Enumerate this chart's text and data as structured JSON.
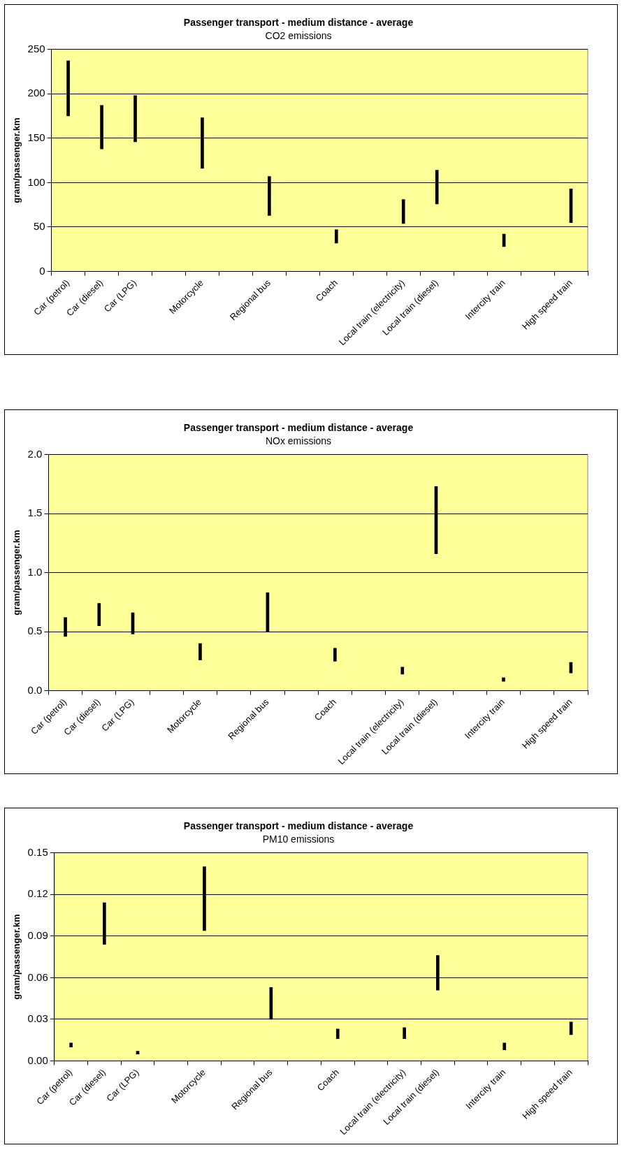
{
  "chart_data": [
    {
      "type": "bar",
      "title": "Passenger transport - medium distance - average",
      "subtitle": "CO2 emissions",
      "ylabel": "gram/passenger.km",
      "categories": [
        "Car (petrol)",
        "Car (diesel)",
        "Car (LPG)",
        null,
        "Motorcycle",
        null,
        "Regional bus",
        null,
        "Coach",
        null,
        "Local train (electricity)",
        "Local train (diesel)",
        null,
        "Intercity train",
        null,
        "High speed train"
      ],
      "base": [
        175,
        138,
        146,
        null,
        116,
        null,
        63,
        null,
        32,
        null,
        54,
        76,
        null,
        28,
        null,
        55
      ],
      "values": [
        62,
        49,
        52,
        null,
        57,
        null,
        44,
        null,
        15,
        null,
        27,
        38,
        null,
        14,
        null,
        38
      ],
      "color": "#000000",
      "ylim": [
        0,
        250
      ],
      "yticks": [
        0,
        50,
        100,
        150,
        200,
        250
      ],
      "grid": "y",
      "legend": false
    },
    {
      "type": "bar",
      "title": "Passenger transport - medium distance - average",
      "subtitle": "NOx emissions",
      "ylabel": "gram/passenger.km",
      "categories": [
        "Car (petrol)",
        "Car (diesel)",
        "Car (LPG)",
        null,
        "Motorcycle",
        null,
        "Regional bus",
        null,
        "Coach",
        null,
        "Local train (electricity)",
        "Local train (diesel)",
        null,
        "Intercity train",
        null,
        "High speed train"
      ],
      "base": [
        0.46,
        0.55,
        0.48,
        null,
        0.26,
        null,
        0.5,
        null,
        0.25,
        null,
        0.14,
        1.16,
        null,
        0.08,
        null,
        0.15
      ],
      "values": [
        0.16,
        0.19,
        0.18,
        null,
        0.14,
        null,
        0.33,
        null,
        0.11,
        null,
        0.06,
        0.57,
        null,
        0.03,
        null,
        0.09
      ],
      "color": "#000000",
      "ylim": [
        0,
        2
      ],
      "yticks": [
        {
          "value": 0,
          "label": "0.0"
        },
        {
          "value": 0.5,
          "label": "0.5"
        },
        {
          "value": 1,
          "label": "1.0"
        },
        {
          "value": 1.5,
          "label": "1.5"
        },
        {
          "value": 2,
          "label": "2.0"
        }
      ],
      "grid": "y",
      "legend": false
    },
    {
      "type": "bar",
      "title": "Passenger transport - medium distance - average",
      "subtitle": "PM10 emissions",
      "ylabel": "gram/passenger.km",
      "categories": [
        "Car (petrol)",
        "Car (diesel)",
        "Car (LPG)",
        null,
        "Motorcycle",
        null,
        "Regional bus",
        null,
        "Coach",
        null,
        "Local train (electricity)",
        "Local train (diesel)",
        null,
        "Intercity train",
        null,
        "High speed train"
      ],
      "base": [
        0.01,
        0.084,
        0.005,
        null,
        0.094,
        null,
        0.03,
        null,
        0.016,
        null,
        0.016,
        0.051,
        null,
        0.008,
        null,
        0.019
      ],
      "values": [
        0.003,
        0.03,
        0.002,
        null,
        0.046,
        null,
        0.023,
        null,
        0.007,
        null,
        0.008,
        0.025,
        null,
        0.005,
        null,
        0.009
      ],
      "color": "#000000",
      "ylim": [
        0,
        0.15
      ],
      "yticks": [
        {
          "value": 0,
          "label": "0.00"
        },
        {
          "value": 0.03,
          "label": "0.03"
        },
        {
          "value": 0.06,
          "label": "0.06"
        },
        {
          "value": 0.09,
          "label": "0.09"
        },
        {
          "value": 0.12,
          "label": "0.12"
        },
        {
          "value": 0.15,
          "label": "0.15"
        }
      ],
      "grid": "y",
      "legend": false
    }
  ]
}
